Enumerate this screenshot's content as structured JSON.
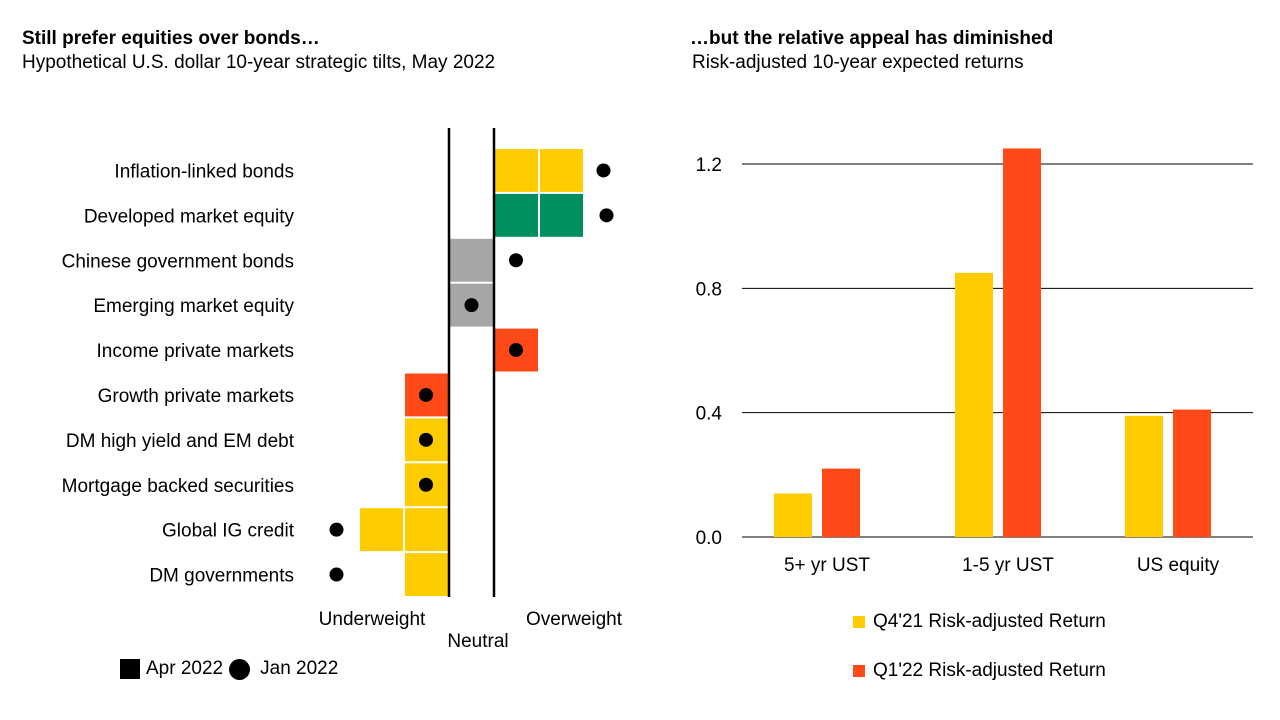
{
  "left_panel": {
    "title": "Still prefer equities over bonds…",
    "subtitle": "Hypothetical U.S. dollar 10-year strategic tilts, May 2022"
  },
  "right_panel": {
    "title": "…but the relative appeal has diminished",
    "subtitle": "Risk-adjusted 10-year expected returns"
  },
  "legend_left": {
    "apr_label": "Apr 2022",
    "jan_label": "Jan 2022"
  },
  "chart_data": [
    {
      "type": "bar",
      "orientation": "horizontal",
      "title": "Still prefer equities over bonds…",
      "subtitle": "Hypothetical U.S. dollar 10-year strategic tilts, May 2022",
      "axis_labels": {
        "underweight": "Underweight",
        "neutral": "Neutral",
        "overweight": "Overweight"
      },
      "categories": [
        "Inflation-linked bonds",
        "Developed market equity",
        "Chinese government bonds",
        "Emerging market equity",
        "Income private markets",
        "Growth private markets",
        "DM high yield and EM debt",
        "Mortgage backed securities",
        "Global IG credit",
        "DM governments"
      ],
      "series": [
        {
          "name": "Apr 2022",
          "values": [
            2,
            2,
            0,
            0,
            1,
            -1,
            -1,
            -1,
            -2,
            -1
          ]
        },
        {
          "name": "Jan 2022",
          "values": [
            2.5,
            2.5,
            0.5,
            0,
            0.5,
            -0.5,
            -0.5,
            -0.5,
            -2.5,
            -2.5
          ]
        }
      ],
      "bar_colors": [
        "#ffcc00",
        "#008f5d",
        "#a6a6a6",
        "#a6a6a6",
        "#ff4a17",
        "#ff4a17",
        "#ffcc00",
        "#ffcc00",
        "#ffcc00",
        "#ffcc00"
      ],
      "legend": {
        "placement": "bottom-left"
      }
    },
    {
      "type": "bar",
      "title": "…but the relative appeal has diminished",
      "subtitle": "Risk-adjusted 10-year expected returns",
      "categories": [
        "5+ yr UST",
        "1-5 yr UST",
        "US equity"
      ],
      "series": [
        {
          "name": "Q4'21 Risk-adjusted Return",
          "values": [
            0.14,
            0.85,
            0.39
          ],
          "color": "#ffcc00"
        },
        {
          "name": "Q1'22 Risk-adjusted Return",
          "values": [
            0.22,
            1.25,
            0.41
          ],
          "color": "#ff4a17"
        }
      ],
      "yticks": [
        "0.0",
        "0.4",
        "0.8",
        "1.2"
      ],
      "ylim": [
        0,
        1.35
      ],
      "grid": true,
      "legend": {
        "placement": "bottom"
      }
    }
  ]
}
